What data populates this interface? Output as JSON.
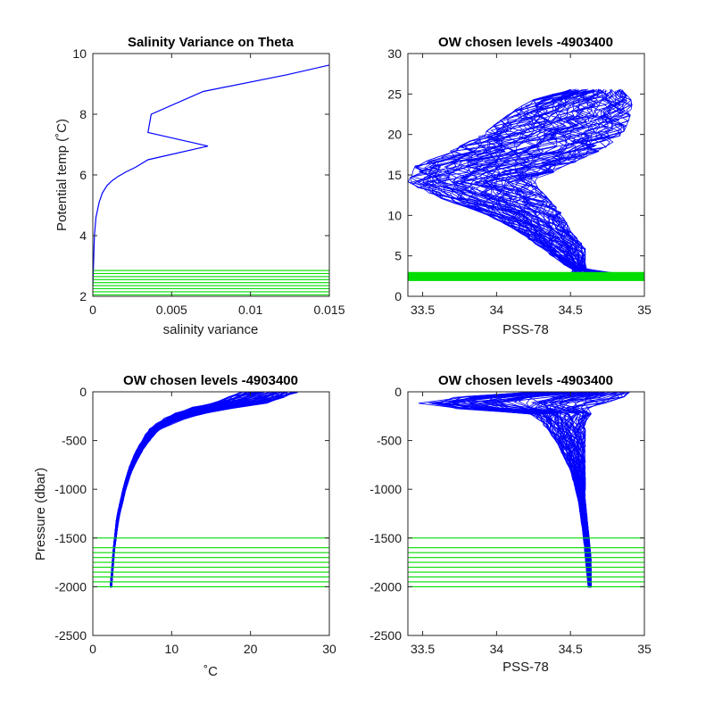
{
  "figure": {
    "background": "#ffffff"
  },
  "colors": {
    "profile": "#0000ff",
    "chosen_levels": "#00dd00",
    "axis": "#262626"
  },
  "chart_data": [
    {
      "id": "p1",
      "type": "line",
      "title": "Salinity Variance on Theta",
      "xlabel": "salinity variance",
      "ylabel": "Potential temp (˚C)",
      "xlim": [
        0,
        0.015
      ],
      "ylim": [
        2,
        10
      ],
      "xticks": [
        {
          "v": 0,
          "label": "0"
        },
        {
          "v": 0.005,
          "label": "0.005"
        },
        {
          "v": 0.01,
          "label": "0.01"
        },
        {
          "v": 0.015,
          "label": "0.015"
        }
      ],
      "yticks": [
        {
          "v": 2,
          "label": "2"
        },
        {
          "v": 4,
          "label": "4"
        },
        {
          "v": 6,
          "label": "6"
        },
        {
          "v": 8,
          "label": "8"
        },
        {
          "v": 10,
          "label": "10"
        }
      ],
      "grid": false,
      "series": [
        {
          "x": [
            0,
            0.0001,
            0.0002,
            0.0004,
            0.0006,
            0.0009,
            0.0012,
            0.0016,
            0.0021,
            0.0027,
            0.0035,
            0.0073,
            0.0035,
            0.0037,
            0.007,
            0.0123,
            0.015
          ],
          "y": [
            2.3,
            4.0,
            4.6,
            5.1,
            5.4,
            5.65,
            5.8,
            5.95,
            6.1,
            6.25,
            6.5,
            6.95,
            7.4,
            8.0,
            8.75,
            9.3,
            9.62
          ]
        }
      ],
      "chosen_levels": {
        "axis": "y",
        "values": [
          2.05,
          2.15,
          2.25,
          2.35,
          2.45,
          2.55,
          2.65,
          2.75,
          2.85
        ]
      }
    },
    {
      "id": "p2",
      "type": "line",
      "title": "OW chosen levels -4903400",
      "xlabel": "PSS-78",
      "ylabel": "",
      "xlim": [
        33.4,
        35
      ],
      "ylim": [
        0,
        30
      ],
      "xticks": [
        {
          "v": 33.5,
          "label": "33.5"
        },
        {
          "v": 34,
          "label": "34"
        },
        {
          "v": 34.5,
          "label": "34.5"
        },
        {
          "v": 35,
          "label": "35"
        }
      ],
      "yticks": [
        {
          "v": 0,
          "label": "0"
        },
        {
          "v": 5,
          "label": "5"
        },
        {
          "v": 10,
          "label": "10"
        },
        {
          "v": 15,
          "label": "15"
        },
        {
          "v": 20,
          "label": "20"
        },
        {
          "v": 25,
          "label": "25"
        },
        {
          "v": 30,
          "label": "30"
        }
      ],
      "grid": false,
      "profile_envelope": {
        "note": "many overlapping profiles (theta vs salinity)",
        "y": [
          2.7,
          4,
          6,
          8,
          10,
          12,
          14,
          16,
          18,
          20,
          22,
          24,
          25.5
        ],
        "x_left": [
          34.58,
          34.45,
          34.3,
          34.15,
          33.95,
          33.65,
          33.4,
          33.45,
          33.7,
          33.9,
          34.05,
          34.2,
          34.5
        ],
        "x_right": [
          34.62,
          34.6,
          34.6,
          34.5,
          34.45,
          34.35,
          34.25,
          34.45,
          34.7,
          34.85,
          34.9,
          34.92,
          34.85
        ]
      },
      "chosen_levels": {
        "axis": "y",
        "values": [
          2.0,
          2.1,
          2.2,
          2.3,
          2.4,
          2.5,
          2.6,
          2.7,
          2.8,
          2.9
        ]
      }
    },
    {
      "id": "p3",
      "type": "line",
      "title": "OW chosen levels -4903400",
      "xlabel": "˚C",
      "ylabel": "Pressure (dbar)",
      "xlim": [
        0,
        30
      ],
      "ylim": [
        -2500,
        0
      ],
      "xticks": [
        {
          "v": 0,
          "label": "0"
        },
        {
          "v": 10,
          "label": "10"
        },
        {
          "v": 20,
          "label": "20"
        },
        {
          "v": 30,
          "label": "30"
        }
      ],
      "yticks": [
        {
          "v": -2500,
          "label": "-2500"
        },
        {
          "v": -2000,
          "label": "-2000"
        },
        {
          "v": -1500,
          "label": "-1500"
        },
        {
          "v": -1000,
          "label": "-1000"
        },
        {
          "v": -500,
          "label": "-500"
        },
        {
          "v": 0,
          "label": "0"
        }
      ],
      "grid": false,
      "profile_envelope": {
        "note": "many overlapping profiles (temperature vs pressure)",
        "y": [
          0,
          -100,
          -200,
          -300,
          -400,
          -600,
          -800,
          -1000,
          -1300,
          -1600,
          -2000
        ],
        "x_left": [
          19,
          16,
          11,
          8.5,
          7.0,
          5.5,
          4.5,
          3.8,
          3.0,
          2.6,
          2.2
        ],
        "x_right": [
          26,
          23,
          15,
          10.5,
          8.2,
          6.3,
          5.0,
          4.2,
          3.3,
          2.8,
          2.4
        ]
      },
      "chosen_levels": {
        "axis": "y",
        "values": [
          -2000,
          -1950,
          -1900,
          -1850,
          -1800,
          -1750,
          -1700,
          -1650,
          -1600,
          -1500
        ]
      }
    },
    {
      "id": "p4",
      "type": "line",
      "title": "OW chosen levels -4903400",
      "xlabel": "PSS-78",
      "ylabel": "",
      "xlim": [
        33.4,
        35
      ],
      "ylim": [
        -2500,
        0
      ],
      "xticks": [
        {
          "v": 33.5,
          "label": "33.5"
        },
        {
          "v": 34,
          "label": "34"
        },
        {
          "v": 34.5,
          "label": "34.5"
        },
        {
          "v": 35,
          "label": "35"
        }
      ],
      "yticks": [
        {
          "v": -2500,
          "label": "-2500"
        },
        {
          "v": -2000,
          "label": "-2000"
        },
        {
          "v": -1500,
          "label": "-1500"
        },
        {
          "v": -1000,
          "label": "-1000"
        },
        {
          "v": -500,
          "label": "-500"
        },
        {
          "v": 0,
          "label": "0"
        }
      ],
      "grid": false,
      "profile_envelope": {
        "note": "many overlapping profiles (salinity vs pressure)",
        "y": [
          0,
          -80,
          -150,
          -200,
          -300,
          -500,
          -800,
          -1100,
          -1400,
          -1700,
          -2000
        ],
        "x_left": [
          34.3,
          33.45,
          33.5,
          34.2,
          34.3,
          34.4,
          34.5,
          34.55,
          34.58,
          34.6,
          34.62
        ],
        "x_right": [
          34.9,
          34.85,
          34.6,
          34.65,
          34.6,
          34.6,
          34.6,
          34.6,
          34.62,
          34.64,
          34.64
        ]
      },
      "chosen_levels": {
        "axis": "y",
        "values": [
          -2000,
          -1950,
          -1900,
          -1850,
          -1800,
          -1750,
          -1700,
          -1650,
          -1600,
          -1500
        ]
      }
    }
  ]
}
